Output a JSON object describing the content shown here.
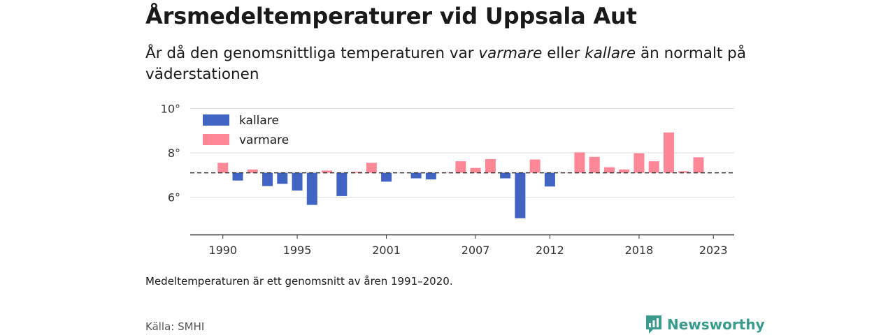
{
  "header": {
    "title": "Årsmedeltemperaturer vid Uppsala Aut",
    "subtitle_pre": "År då den genomsnittliga temperaturen var ",
    "subtitle_warm": "varmare",
    "subtitle_mid": " eller ",
    "subtitle_cold": "kallare",
    "subtitle_post": " än normalt på väderstationen"
  },
  "footer": {
    "note": "Medeltemperaturen är ett genomsnitt av åren 1991–2020.",
    "source": "Källa: SMHI",
    "brand": "Newsworthy"
  },
  "colors": {
    "cold": "#4164c2",
    "warm": "#ff8796",
    "grid": "#dddddd",
    "axis": "#333333",
    "baseline": "#333333",
    "brand": "#3a9a8c"
  },
  "chart_data": {
    "type": "bar",
    "baseline": 7.1,
    "ylim": [
      4.2,
      10
    ],
    "yticks": [
      6,
      8,
      10
    ],
    "ytick_labels": [
      "6°",
      "8°",
      "10°"
    ],
    "xticks": [
      1990,
      1995,
      2001,
      2007,
      2012,
      2018,
      2023
    ],
    "xtick_labels": [
      "1990",
      "1995",
      "2001",
      "2007",
      "2012",
      "2018",
      "2023"
    ],
    "xlim": [
      1987.8,
      2024.4
    ],
    "legend": [
      {
        "key": "cold",
        "label": "kallare"
      },
      {
        "key": "warm",
        "label": "varmare"
      }
    ],
    "legend_position": "top-left",
    "grid": true,
    "years": [
      1990,
      1991,
      1992,
      1993,
      1994,
      1995,
      1996,
      1997,
      1998,
      1999,
      2000,
      2001,
      2002,
      2003,
      2004,
      2005,
      2006,
      2007,
      2008,
      2009,
      2010,
      2011,
      2012,
      2013,
      2014,
      2015,
      2016,
      2017,
      2018,
      2019,
      2020,
      2021,
      2022
    ],
    "values": [
      7.55,
      6.75,
      7.25,
      6.5,
      6.6,
      6.3,
      5.65,
      7.2,
      6.05,
      7.15,
      7.55,
      6.7,
      7.1,
      6.85,
      6.8,
      7.1,
      7.62,
      7.32,
      7.72,
      6.85,
      5.05,
      7.7,
      6.48,
      7.1,
      8.02,
      7.82,
      7.35,
      7.25,
      7.98,
      7.62,
      8.92,
      7.17,
      7.8
    ]
  }
}
